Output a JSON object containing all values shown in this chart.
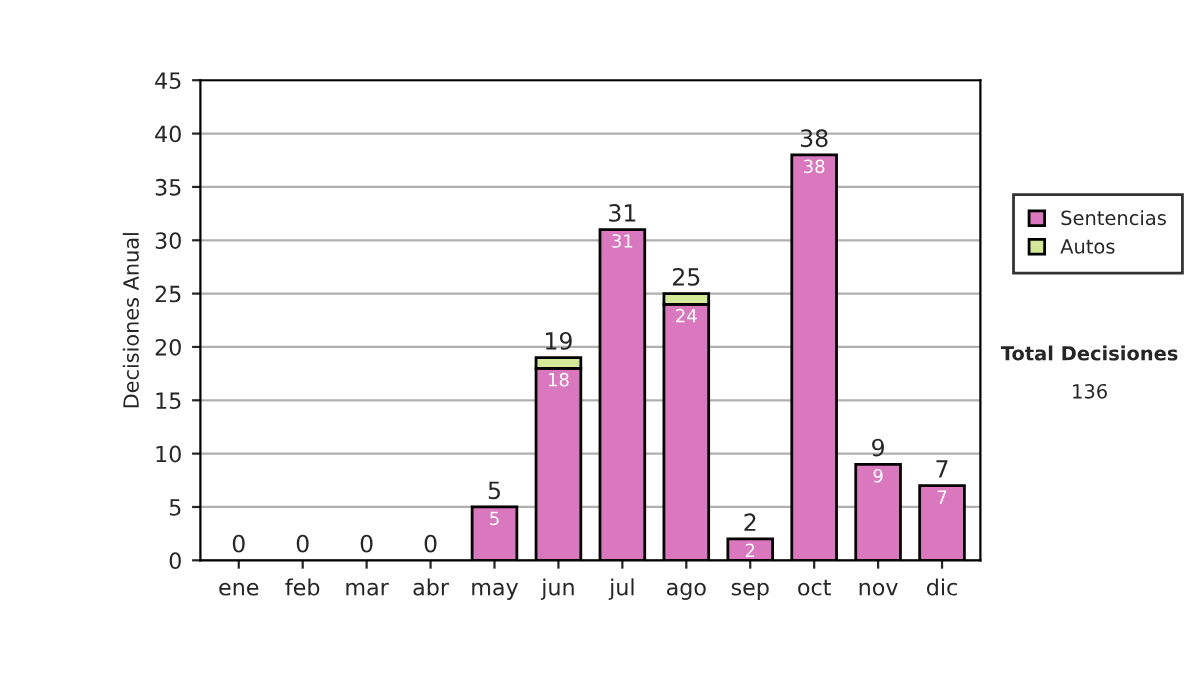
{
  "chart_data": {
    "type": "bar",
    "stacked": true,
    "ylabel": "Decisiones Anual",
    "categories": [
      "ene",
      "feb",
      "mar",
      "abr",
      "may",
      "jun",
      "jul",
      "ago",
      "sep",
      "oct",
      "nov",
      "dic"
    ],
    "series": [
      {
        "name": "Sentencias",
        "color": "#d977bf",
        "values": [
          0,
          0,
          0,
          0,
          5,
          18,
          31,
          24,
          2,
          38,
          9,
          7
        ],
        "value_labels": [
          null,
          null,
          null,
          null,
          "5",
          "18",
          "31",
          "24",
          "2",
          "38",
          "9",
          "7"
        ]
      },
      {
        "name": "Autos",
        "color": "#d4e89a",
        "values": [
          0,
          0,
          0,
          0,
          0,
          1,
          0,
          1,
          0,
          0,
          0,
          0
        ]
      }
    ],
    "totals": [
      "0",
      "0",
      "0",
      "0",
      "5",
      "19",
      "31",
      "25",
      "2",
      "38",
      "9",
      "7"
    ],
    "ylim": [
      0,
      45
    ],
    "yticks": [
      0,
      5,
      10,
      15,
      20,
      25,
      30,
      35,
      40,
      45
    ],
    "grid": "y",
    "legend": "right",
    "annotations": [
      "Total Decisiones",
      "136"
    ]
  }
}
